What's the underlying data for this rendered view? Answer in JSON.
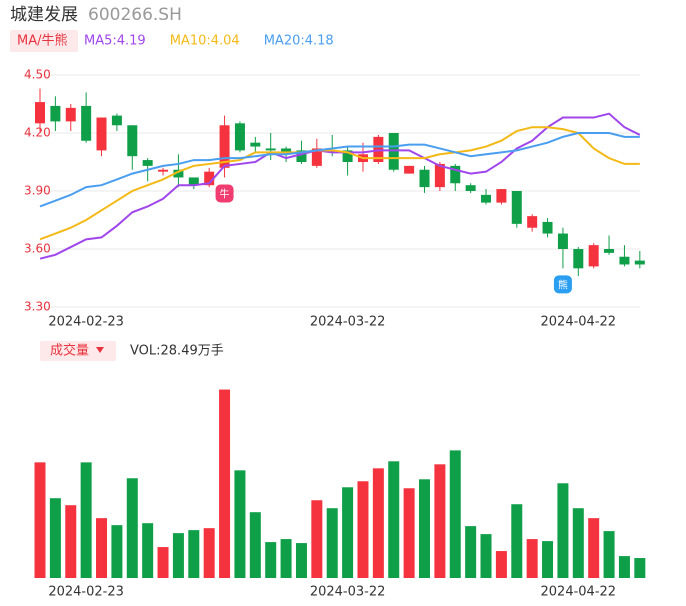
{
  "header": {
    "name": "城建发展",
    "code": "600266.SH"
  },
  "chart_data": [
    {
      "type": "candlestick",
      "legend_button": "MA/牛熊",
      "categories": [
        null,
        null,
        null,
        "2024-02-23",
        null,
        null,
        null,
        null,
        null,
        null,
        null,
        null,
        null,
        null,
        null,
        null,
        null,
        null,
        null,
        null,
        "2024-03-22",
        null,
        null,
        null,
        null,
        null,
        null,
        null,
        null,
        null,
        null,
        null,
        null,
        null,
        null,
        "2024-04-22",
        null,
        null,
        null,
        null
      ],
      "open": [
        4.25,
        4.34,
        4.26,
        4.34,
        4.11,
        4.29,
        4.24,
        4.06,
        4.0,
        4.01,
        3.97,
        3.93,
        4.02,
        4.25,
        4.15,
        4.12,
        4.12,
        4.11,
        4.03,
        4.11,
        4.11,
        4.05,
        4.05,
        4.2,
        3.99,
        4.01,
        3.92,
        4.03,
        3.93,
        3.88,
        3.84,
        3.9,
        3.71,
        3.74,
        3.68,
        3.6,
        3.51,
        3.6,
        3.56,
        3.54
      ],
      "high": [
        4.43,
        4.39,
        4.35,
        4.41,
        4.28,
        4.3,
        4.24,
        4.07,
        4.02,
        4.09,
        3.97,
        4.02,
        4.29,
        4.26,
        4.18,
        4.2,
        4.13,
        4.16,
        4.17,
        4.19,
        4.13,
        4.15,
        4.19,
        4.2,
        4.03,
        4.03,
        4.05,
        4.04,
        3.94,
        3.91,
        3.91,
        3.9,
        3.78,
        3.76,
        3.71,
        3.61,
        3.63,
        3.67,
        3.62,
        3.59
      ],
      "low": [
        4.2,
        4.21,
        4.21,
        4.15,
        4.08,
        4.21,
        4.01,
        3.95,
        3.98,
        3.92,
        3.91,
        3.92,
        3.97,
        4.1,
        4.1,
        4.06,
        4.05,
        4.04,
        4.02,
        4.08,
        3.98,
        4.0,
        4.04,
        4.0,
        3.99,
        3.89,
        3.9,
        3.9,
        3.89,
        3.83,
        3.83,
        3.71,
        3.69,
        3.66,
        3.5,
        3.46,
        3.5,
        3.57,
        3.51,
        3.5
      ],
      "close": [
        4.36,
        4.26,
        4.33,
        4.16,
        4.28,
        4.24,
        4.08,
        4.03,
        4.01,
        3.97,
        3.93,
        4.0,
        4.24,
        4.11,
        4.13,
        4.11,
        4.1,
        4.05,
        4.12,
        4.1,
        4.05,
        4.09,
        4.18,
        4.01,
        4.03,
        3.92,
        4.04,
        3.94,
        3.9,
        3.84,
        3.91,
        3.73,
        3.77,
        3.68,
        3.6,
        3.5,
        3.62,
        3.58,
        3.52,
        3.52
      ],
      "up_color": "#f5333f",
      "down_color": "#0e9f48",
      "series": [
        {
          "label": "MA5:4.19",
          "color": "#a046ec",
          "values": [
            3.55,
            3.57,
            3.61,
            3.65,
            3.66,
            3.72,
            3.79,
            3.82,
            3.86,
            3.93,
            3.93,
            3.94,
            4.03,
            4.04,
            4.05,
            4.1,
            4.07,
            4.09,
            4.11,
            4.1,
            4.1,
            4.1,
            4.11,
            4.11,
            4.11,
            4.07,
            4.03,
            4.01,
            3.99,
            4.0,
            4.05,
            4.12,
            4.16,
            4.23,
            4.28,
            4.28,
            4.28,
            4.3,
            4.23,
            4.19
          ]
        },
        {
          "label": "MA10:4.04",
          "color": "#f4b916",
          "values": [
            3.65,
            3.68,
            3.71,
            3.75,
            3.8,
            3.85,
            3.9,
            3.93,
            3.96,
            4.0,
            4.03,
            4.04,
            4.05,
            4.06,
            4.1,
            4.1,
            4.1,
            4.1,
            4.11,
            4.11,
            4.1,
            4.07,
            4.07,
            4.07,
            4.07,
            4.07,
            4.09,
            4.1,
            4.11,
            4.13,
            4.16,
            4.21,
            4.23,
            4.23,
            4.22,
            4.2,
            4.12,
            4.07,
            4.04,
            4.04
          ]
        },
        {
          "label": "MA20:4.18",
          "color": "#4a9ef0",
          "values": [
            3.82,
            3.85,
            3.88,
            3.92,
            3.93,
            3.96,
            3.99,
            4.01,
            4.03,
            4.04,
            4.06,
            4.06,
            4.07,
            4.07,
            4.08,
            4.09,
            4.09,
            4.1,
            4.11,
            4.12,
            4.13,
            4.13,
            4.13,
            4.13,
            4.14,
            4.14,
            4.12,
            4.1,
            4.08,
            4.09,
            4.1,
            4.11,
            4.13,
            4.15,
            4.18,
            4.2,
            4.2,
            4.2,
            4.18,
            4.18
          ]
        }
      ],
      "signals": [
        {
          "at": 12,
          "label": "牛",
          "color": "#f03c6e"
        },
        {
          "at": 34,
          "label": "熊",
          "color": "#2a9ef0"
        }
      ],
      "ylim": [
        3.3,
        4.5
      ],
      "yticks": [
        {
          "value": 4.5,
          "label": "4.50"
        },
        {
          "value": 4.2,
          "label": "4.20"
        },
        {
          "value": 3.9,
          "label": "3.90"
        },
        {
          "value": 3.6,
          "label": "3.60"
        },
        {
          "value": 3.3,
          "label": "3.30"
        }
      ],
      "grid": true
    },
    {
      "type": "volume",
      "button": "成交量",
      "label": "VOL:28.49万手",
      "values": [
        165.2,
        114.0,
        104.0,
        165.2,
        85.5,
        75.5,
        142.5,
        78.3,
        44.2,
        64.1,
        68.4,
        71.2,
        269.2,
        153.8,
        94.0,
        51.3,
        55.6,
        49.9,
        111.1,
        99.7,
        129.6,
        138.2,
        156.7,
        166.7,
        128.2,
        141.0,
        162.4,
        182.3,
        74.1,
        62.7,
        38.5,
        105.4,
        55.6,
        52.7,
        135.3,
        99.7,
        85.5,
        67.0,
        31.3,
        28.49
      ],
      "ylim": [
        0,
        300
      ]
    }
  ]
}
